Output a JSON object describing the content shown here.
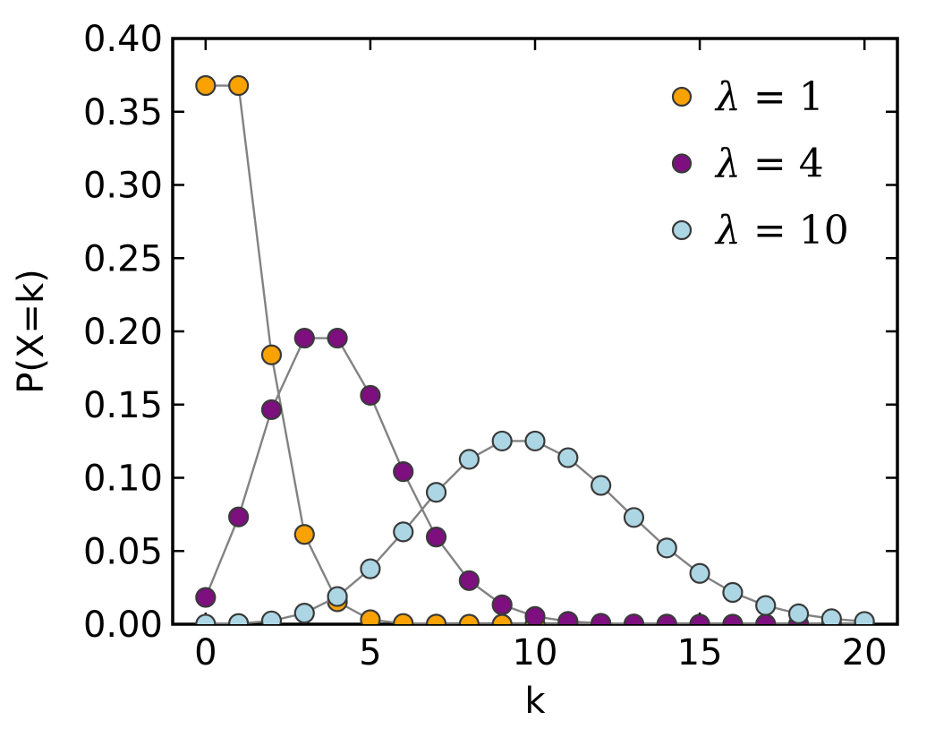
{
  "chart_data": {
    "type": "line",
    "title": "",
    "xlabel": "k",
    "ylabel": "P(X=k)",
    "xlim": [
      -1,
      21
    ],
    "ylim": [
      0,
      0.4
    ],
    "xticks": [
      0,
      5,
      10,
      15,
      20
    ],
    "xtick_labels": [
      "0",
      "5",
      "10",
      "15",
      "20"
    ],
    "yticks": [
      0.0,
      0.05,
      0.1,
      0.15,
      0.2,
      0.25,
      0.3,
      0.35,
      0.4
    ],
    "ytick_labels": [
      "0.00",
      "0.05",
      "0.10",
      "0.15",
      "0.20",
      "0.25",
      "0.30",
      "0.35",
      "0.40"
    ],
    "x": [
      0,
      1,
      2,
      3,
      4,
      5,
      6,
      7,
      8,
      9,
      10,
      11,
      12,
      13,
      14,
      15,
      16,
      17,
      18,
      19,
      20
    ],
    "series": [
      {
        "name": "lambda-1",
        "label": "λ = 1",
        "color": "#F9A201",
        "values": [
          0.367879,
          0.367879,
          0.18394,
          0.061313,
          0.015328,
          0.003066,
          0.000511,
          7.3e-05,
          9e-06,
          1e-06,
          0,
          0,
          0,
          0,
          0,
          0,
          0,
          0,
          0,
          0,
          0
        ]
      },
      {
        "name": "lambda-4",
        "label": "λ = 4",
        "color": "#7D0F7F",
        "values": [
          0.018316,
          0.073263,
          0.146525,
          0.195367,
          0.195367,
          0.156293,
          0.104196,
          0.05954,
          0.02977,
          0.013231,
          0.005292,
          0.001925,
          0.000642,
          0.000197,
          5.6e-05,
          1.5e-05,
          4e-06,
          1e-06,
          0,
          0,
          0
        ]
      },
      {
        "name": "lambda-10",
        "label": "λ = 10",
        "color": "#ACD6E4",
        "values": [
          4.5e-05,
          0.000454,
          0.00227,
          0.007567,
          0.018917,
          0.037833,
          0.063055,
          0.090079,
          0.112599,
          0.12511,
          0.12511,
          0.113736,
          0.09478,
          0.072908,
          0.052077,
          0.034718,
          0.021699,
          0.012764,
          0.007091,
          0.003732,
          0.001866
        ]
      }
    ],
    "line_color": "#828282",
    "marker_edge_color": "#3A3A3A",
    "spine_color": "#000000",
    "legend_position": "upper right",
    "grid": false
  }
}
